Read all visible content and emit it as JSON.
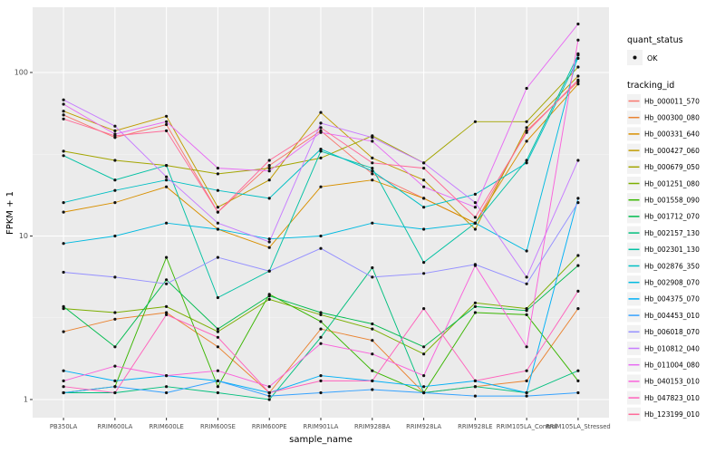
{
  "chart_data": {
    "type": "line",
    "title": "",
    "xlabel": "sample_name",
    "ylabel": "FPKM + 1",
    "yscale": "log10",
    "ylim": [
      1,
      230
    ],
    "y_ticks": [
      1,
      10,
      100
    ],
    "y_tick_labels": [
      "1",
      "10",
      "100"
    ],
    "y_minor_ticks": [
      3.1623,
      31.623
    ],
    "grid": "ggplot-gray-panel-white-gridlines",
    "legend_position": "right",
    "categories": [
      "PB350LA",
      "RRIM600LA",
      "RRIM600LE",
      "RRIM600SE",
      "RRIM600PE",
      "RRIM901LA",
      "RRIM928BA",
      "RRIM928LA",
      "RRIM928LE",
      "RRIM105LA_Control",
      "RRIM105LA_Stressed"
    ],
    "series": [
      {
        "name": "Hb_000011_570",
        "color": "#F8766D",
        "values": [
          55,
          40,
          48,
          14,
          27,
          44,
          24,
          17,
          12,
          44,
          88
        ]
      },
      {
        "name": "Hb_000300_080",
        "color": "#EA8331",
        "values": [
          2.6,
          3.1,
          3.4,
          2.1,
          1.1,
          2.7,
          2.3,
          1.1,
          1.2,
          1.3,
          3.6
        ]
      },
      {
        "name": "Hb_000331_640",
        "color": "#D89000",
        "values": [
          14,
          16,
          20,
          11,
          8.5,
          20,
          22,
          17,
          12,
          38,
          85
        ]
      },
      {
        "name": "Hb_000427_060",
        "color": "#C09B00",
        "values": [
          58,
          44,
          54,
          15,
          22,
          57,
          30,
          22,
          11,
          46,
          95
        ]
      },
      {
        "name": "Hb_000679_050",
        "color": "#A3A500",
        "values": [
          33,
          29,
          27,
          24,
          26,
          30,
          41,
          28,
          50,
          50,
          108
        ]
      },
      {
        "name": "Hb_001251_080",
        "color": "#7CAE00",
        "values": [
          3.6,
          3.4,
          3.7,
          2.6,
          4.1,
          3.3,
          2.7,
          1.9,
          3.9,
          3.6,
          7.6
        ]
      },
      {
        "name": "Hb_001558_090",
        "color": "#39B600",
        "values": [
          1.1,
          1.2,
          7.4,
          1.2,
          4.4,
          3.0,
          1.5,
          1.1,
          3.4,
          3.3,
          1.3
        ]
      },
      {
        "name": "Hb_001712_070",
        "color": "#00BB4E",
        "values": [
          3.7,
          2.1,
          5.4,
          2.7,
          4.3,
          3.4,
          2.9,
          2.1,
          3.7,
          3.5,
          6.6
        ]
      },
      {
        "name": "Hb_002157_130",
        "color": "#00BF7D",
        "values": [
          1.1,
          1.1,
          1.2,
          1.1,
          1.0,
          2.4,
          6.4,
          1.1,
          1.2,
          1.1,
          1.5
        ]
      },
      {
        "name": "Hb_002301_130",
        "color": "#00C1A3",
        "values": [
          31,
          22,
          27,
          4.2,
          6.1,
          33,
          26,
          6.9,
          12,
          29,
          128
        ]
      },
      {
        "name": "Hb_002876_350",
        "color": "#00BFC4",
        "values": [
          16,
          19,
          22,
          19,
          17,
          34,
          25,
          15,
          18,
          28,
          122
        ]
      },
      {
        "name": "Hb_002908_070",
        "color": "#00BAE0",
        "values": [
          9,
          10,
          12,
          11,
          9.6,
          10,
          12,
          11,
          12,
          8.1,
          130
        ]
      },
      {
        "name": "Hb_004375_070",
        "color": "#00B0F6",
        "values": [
          1.5,
          1.3,
          1.4,
          1.3,
          1.1,
          1.4,
          1.3,
          1.2,
          1.3,
          1.1,
          17
        ]
      },
      {
        "name": "Hb_004453_010",
        "color": "#35A2FF",
        "values": [
          1.1,
          1.2,
          1.1,
          1.3,
          1.05,
          1.1,
          1.15,
          1.1,
          1.05,
          1.05,
          1.1
        ]
      },
      {
        "name": "Hb_006018_070",
        "color": "#9590FF",
        "values": [
          6,
          5.6,
          5.1,
          7.4,
          6.1,
          8.4,
          5.6,
          5.9,
          6.7,
          5.1,
          16
        ]
      },
      {
        "name": "Hb_010812_040",
        "color": "#C77CFF",
        "values": [
          68,
          47,
          23,
          12,
          9.2,
          49,
          40,
          28,
          16,
          5.6,
          29
        ]
      },
      {
        "name": "Hb_011004_080",
        "color": "#E76BF3",
        "values": [
          64,
          42,
          50,
          26,
          25,
          43,
          38,
          20,
          15,
          80,
          198
        ]
      },
      {
        "name": "Hb_040153_010",
        "color": "#FA62DB",
        "values": [
          1.3,
          1.6,
          1.4,
          1.5,
          1.2,
          2.2,
          1.9,
          1.4,
          6.6,
          2.1,
          158
        ]
      },
      {
        "name": "Hb_047823_010",
        "color": "#FF62BC",
        "values": [
          1.2,
          1.1,
          3.3,
          2.4,
          1.1,
          1.3,
          1.3,
          3.6,
          1.3,
          1.5,
          4.6
        ]
      },
      {
        "name": "Hb_123199_010",
        "color": "#FF6A98",
        "values": [
          52,
          41,
          44,
          14,
          29,
          46,
          28,
          26,
          13,
          43,
          90
        ]
      }
    ]
  },
  "legend": {
    "quant_status_title": "quant_status",
    "quant_status_items": [
      {
        "label": "OK",
        "symbol": "point"
      }
    ],
    "tracking_id_title": "tracking_id"
  },
  "colors": {
    "panel_bg": "#EBEBEB",
    "grid_major": "#FFFFFF",
    "grid_minor": "#F7F7F7",
    "point": "#111111",
    "legend_key_bg": "#F2F2F2",
    "axis_text": "#4D4D4D",
    "axis_title": "#000000",
    "tick_mark": "#333333"
  }
}
